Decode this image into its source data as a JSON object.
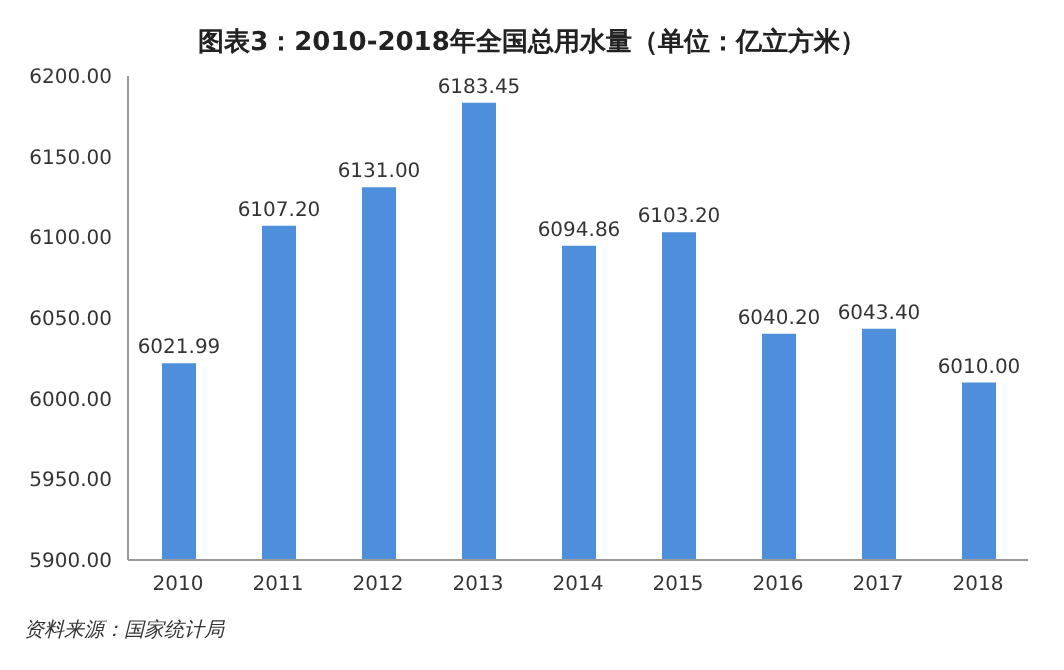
{
  "chart_data": {
    "type": "bar",
    "title": "图表3：2010-2018年全国总用水量（单位：亿立方米）",
    "categories": [
      "2010",
      "2011",
      "2012",
      "2013",
      "2014",
      "2015",
      "2016",
      "2017",
      "2018"
    ],
    "values": [
      6021.99,
      6107.2,
      6131,
      6183.45,
      6094.86,
      6103.2,
      6040.2,
      6043.4,
      6010
    ],
    "value_labels": [
      "6021.99",
      "6107.20",
      "6131.00",
      "6183.45",
      "6094.86",
      "6103.20",
      "6040.20",
      "6043.40",
      "6010.00"
    ],
    "color": "#4d8fdb",
    "ylim": [
      5900,
      6200
    ],
    "yticks": [
      {
        "value": 5900,
        "label": "5900.00"
      },
      {
        "value": 5950,
        "label": "5950.00"
      },
      {
        "value": 6000,
        "label": "6000.00"
      },
      {
        "value": 6050,
        "label": "6050.00"
      },
      {
        "value": 6100,
        "label": "6100.00"
      },
      {
        "value": 6150,
        "label": "6150.00"
      },
      {
        "value": 6200,
        "label": "6200.00"
      }
    ],
    "annotations": [
      "资料来源：国家统计局"
    ]
  }
}
